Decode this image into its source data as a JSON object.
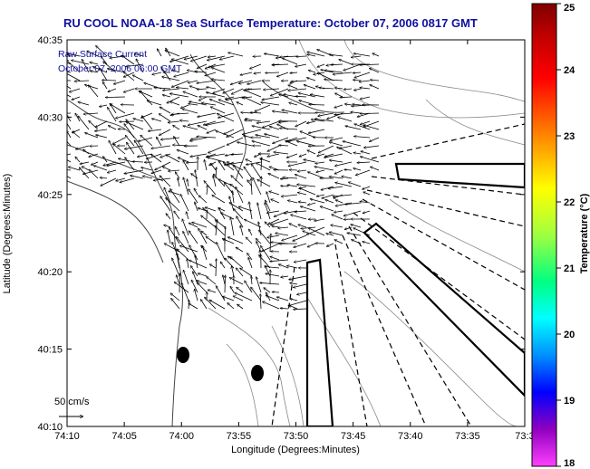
{
  "chart_data": {
    "type": "scatter",
    "title": "RU COOL  NOAA-18  Sea Surface Temperature:  October 07, 2006 0817 GMT",
    "xlabel": "Longitude (Degrees:Minutes)",
    "ylabel": "Latitude (Degrees:Minutes)",
    "x_ticks": [
      "74:10",
      "74:05",
      "74:00",
      "73:55",
      "73:50",
      "73:45",
      "73:40",
      "73:35",
      "73:3"
    ],
    "y_ticks": [
      "40:35",
      "40:30",
      "40:25",
      "40:20",
      "40:15",
      "40:10"
    ],
    "xlim_minutes_west": [
      10,
      -30
    ],
    "ylim_minutes_north": [
      10,
      35
    ],
    "annotations": [
      "Raw Surface Current",
      "October 07, 2006 06:00 GMT"
    ],
    "scale_label": "50 cm/s",
    "colorbar": {
      "label": "Temperature (°C)",
      "ticks": [
        "25",
        "24",
        "23",
        "22",
        "21",
        "20",
        "19",
        "18"
      ],
      "range": [
        18,
        25
      ]
    },
    "markers": [
      {
        "lon_min_west": -1.2,
        "lat_min": 14.2
      },
      {
        "lon_min_west": -6.2,
        "lat_min": 13.3
      }
    ],
    "vector_field_centroid": {
      "lon_min_west": -9,
      "lat_min": 26
    },
    "grid": false,
    "legend": "none"
  }
}
